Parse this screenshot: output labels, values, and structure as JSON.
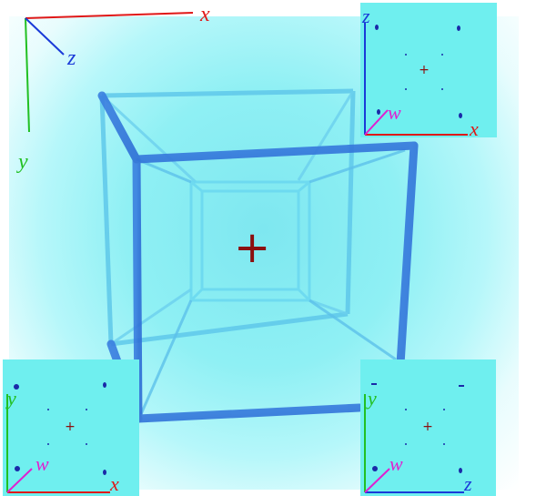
{
  "main_axes": {
    "x_label": "x",
    "y_label": "y",
    "z_label": "z",
    "x_color": "#e01818",
    "y_color": "#22c022",
    "z_color": "#1a3ad8"
  },
  "center_marker": {
    "symbol": "+",
    "color": "#8b1010"
  },
  "insets": [
    {
      "name": "inset-xz",
      "horizontal_label": "x",
      "vertical_label": "z",
      "diagonal_label": "w",
      "horizontal_color": "#e01818",
      "vertical_color": "#1a3ad8"
    },
    {
      "name": "inset-xy",
      "horizontal_label": "x",
      "vertical_label": "y",
      "diagonal_label": "w",
      "horizontal_color": "#e01818",
      "vertical_color": "#22c022"
    },
    {
      "name": "inset-zy",
      "horizontal_label": "z",
      "vertical_label": "y",
      "diagonal_label": "w",
      "horizontal_color": "#1a3ad8",
      "vertical_color": "#22c022"
    }
  ],
  "w_color": "#e020d0",
  "background_color": "#8ff0f4"
}
